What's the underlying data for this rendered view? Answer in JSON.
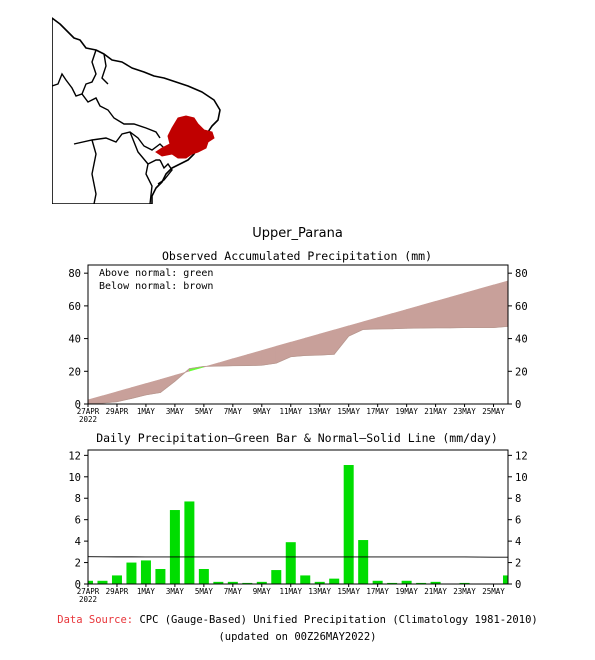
{
  "region_title": "Upper_Parana",
  "colors": {
    "land": "#ffffff",
    "border": "#000000",
    "region": "#c00000",
    "observed_green": "#66ff33",
    "deficit_brown": "#c8a09a",
    "bar_green": "#00dd00",
    "source_label": "#e8353a"
  },
  "chart_data": [
    {
      "type": "area",
      "title": "Observed Accumulated Precipitation (mm)",
      "legend": [
        "Above normal: green",
        "Below normal: brown"
      ],
      "legend_position": "top-left",
      "x_ticks": [
        "27APR",
        "29APR",
        "1MAY",
        "3MAY",
        "5MAY",
        "7MAY",
        "9MAY",
        "11MAY",
        "13MAY",
        "15MAY",
        "17MAY",
        "19MAY",
        "21MAY",
        "23MAY",
        "25MAY"
      ],
      "x_year_label": "2022",
      "y_ticks": [
        0,
        20,
        40,
        60,
        80
      ],
      "ylim": [
        0,
        85
      ],
      "x": [
        "27APR",
        "28APR",
        "29APR",
        "30APR",
        "1MAY",
        "2MAY",
        "3MAY",
        "4MAY",
        "5MAY",
        "6MAY",
        "7MAY",
        "8MAY",
        "9MAY",
        "10MAY",
        "11MAY",
        "12MAY",
        "13MAY",
        "14MAY",
        "15MAY",
        "16MAY",
        "17MAY",
        "18MAY",
        "19MAY",
        "20MAY",
        "21MAY",
        "22MAY",
        "23MAY",
        "24MAY",
        "25MAY",
        "26MAY"
      ],
      "series": [
        {
          "name": "Observed",
          "values": [
            0.3,
            0.6,
            1.4,
            3.4,
            5.6,
            7.0,
            13.9,
            21.6,
            23.0,
            23.2,
            23.4,
            23.5,
            23.7,
            25.0,
            28.9,
            29.7,
            29.9,
            30.4,
            41.5,
            45.6,
            45.9,
            46.0,
            46.3,
            46.4,
            46.6,
            46.6,
            46.7,
            46.7,
            46.7,
            47.5
          ]
        },
        {
          "name": "Normal",
          "values": [
            2.5,
            5.0,
            7.5,
            10.0,
            12.5,
            15.0,
            17.6,
            20.1,
            22.6,
            25.1,
            27.7,
            30.2,
            32.7,
            35.3,
            37.8,
            40.3,
            42.8,
            45.3,
            47.8,
            50.3,
            52.8,
            55.3,
            57.8,
            60.3,
            62.8,
            65.3,
            67.8,
            70.3,
            72.8,
            75.3
          ]
        }
      ]
    },
    {
      "type": "bar",
      "title": "Daily Precipitation—Green Bar & Normal—Solid Line (mm/day)",
      "x_ticks": [
        "27APR",
        "29APR",
        "1MAY",
        "3MAY",
        "5MAY",
        "7MAY",
        "9MAY",
        "11MAY",
        "13MAY",
        "15MAY",
        "17MAY",
        "19MAY",
        "21MAY",
        "23MAY",
        "25MAY"
      ],
      "x_year_label": "2022",
      "y_ticks": [
        0,
        2,
        4,
        6,
        8,
        10,
        12
      ],
      "ylim": [
        0,
        12.5
      ],
      "categories": [
        "27APR",
        "28APR",
        "29APR",
        "30APR",
        "1MAY",
        "2MAY",
        "3MAY",
        "4MAY",
        "5MAY",
        "6MAY",
        "7MAY",
        "8MAY",
        "9MAY",
        "10MAY",
        "11MAY",
        "12MAY",
        "13MAY",
        "14MAY",
        "15MAY",
        "16MAY",
        "17MAY",
        "18MAY",
        "19MAY",
        "20MAY",
        "21MAY",
        "22MAY",
        "23MAY",
        "24MAY",
        "25MAY",
        "26MAY"
      ],
      "series": [
        {
          "name": "Daily Precipitation",
          "values": [
            0.3,
            0.3,
            0.8,
            2.0,
            2.2,
            1.4,
            6.9,
            7.7,
            1.4,
            0.2,
            0.2,
            0.1,
            0.2,
            1.3,
            3.9,
            0.8,
            0.2,
            0.5,
            11.1,
            4.1,
            0.3,
            0.1,
            0.3,
            0.1,
            0.2,
            0.0,
            0.1,
            0.0,
            0.0,
            0.8
          ]
        },
        {
          "name": "Normal",
          "values": [
            2.55,
            2.54,
            2.53,
            2.53,
            2.52,
            2.52,
            2.52,
            2.52,
            2.52,
            2.52,
            2.52,
            2.52,
            2.52,
            2.52,
            2.52,
            2.52,
            2.52,
            2.52,
            2.52,
            2.52,
            2.52,
            2.52,
            2.52,
            2.52,
            2.52,
            2.52,
            2.52,
            2.51,
            2.5,
            2.5
          ]
        }
      ]
    }
  ],
  "footer": {
    "source_label": "Data Source:",
    "source_text": "CPC (Gauge-Based) Unified Precipitation (Climatology 1981-2010)",
    "updated": "(updated on 00Z26MAY2022)"
  }
}
